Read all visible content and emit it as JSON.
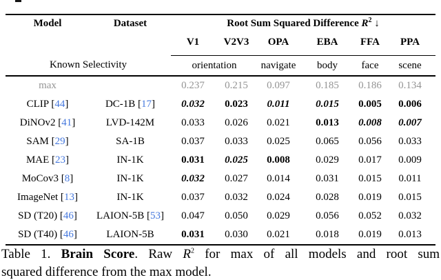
{
  "table": {
    "header": {
      "model": "Model",
      "dataset": "Dataset",
      "group_title": "Root Sum Squared Difference",
      "r_symbol": "R",
      "r_exp": "2",
      "arrow": "↓",
      "columns": [
        "V1",
        "V2V3",
        "OPA",
        "EBA",
        "FFA",
        "PPA"
      ],
      "known_selectivity": "Known Selectivity",
      "selectivity": [
        "orientation",
        "navigate",
        "body",
        "face",
        "scene"
      ]
    },
    "rows": [
      {
        "model": "max",
        "model_cite": "",
        "dataset": "",
        "dataset_cite": "",
        "muted": true,
        "values": [
          "0.237",
          "0.215",
          "0.097",
          "0.185",
          "0.186",
          "0.134"
        ],
        "styles": [
          "n",
          "n",
          "n",
          "n",
          "n",
          "n"
        ]
      },
      {
        "model": "CLIP",
        "model_cite": "44",
        "dataset": "DC-1B",
        "dataset_cite": "17",
        "muted": false,
        "values": [
          "0.032",
          "0.023",
          "0.011",
          "0.015",
          "0.005",
          "0.006"
        ],
        "styles": [
          "bi",
          "b",
          "bi",
          "bi",
          "b",
          "b"
        ]
      },
      {
        "model": "DiNOv2",
        "model_cite": "41",
        "dataset": "LVD-142M",
        "dataset_cite": "",
        "muted": false,
        "values": [
          "0.033",
          "0.026",
          "0.021",
          "0.013",
          "0.008",
          "0.007"
        ],
        "styles": [
          "n",
          "n",
          "n",
          "b",
          "bi",
          "bi"
        ]
      },
      {
        "model": "SAM",
        "model_cite": "29",
        "dataset": "SA-1B",
        "dataset_cite": "",
        "muted": false,
        "values": [
          "0.037",
          "0.033",
          "0.025",
          "0.065",
          "0.056",
          "0.033"
        ],
        "styles": [
          "n",
          "n",
          "n",
          "n",
          "n",
          "n"
        ]
      },
      {
        "model": "MAE",
        "model_cite": "23",
        "dataset": "IN-1K",
        "dataset_cite": "",
        "muted": false,
        "values": [
          "0.031",
          "0.025",
          "0.008",
          "0.029",
          "0.017",
          "0.009"
        ],
        "styles": [
          "b",
          "bi",
          "b",
          "n",
          "n",
          "n"
        ]
      },
      {
        "model": "MoCov3",
        "model_cite": "8",
        "dataset": "IN-1K",
        "dataset_cite": "",
        "muted": false,
        "values": [
          "0.032",
          "0.027",
          "0.014",
          "0.031",
          "0.015",
          "0.011"
        ],
        "styles": [
          "bi",
          "n",
          "n",
          "n",
          "n",
          "n"
        ]
      },
      {
        "model": "ImageNet",
        "model_cite": "13",
        "dataset": "IN-1K",
        "dataset_cite": "",
        "muted": false,
        "values": [
          "0.037",
          "0.032",
          "0.024",
          "0.028",
          "0.019",
          "0.015"
        ],
        "styles": [
          "n",
          "n",
          "n",
          "n",
          "n",
          "n"
        ]
      },
      {
        "model": "SD (T20)",
        "model_cite": "46",
        "dataset": "LAION-5B",
        "dataset_cite": "53",
        "muted": false,
        "values": [
          "0.047",
          "0.050",
          "0.029",
          "0.056",
          "0.052",
          "0.032"
        ],
        "styles": [
          "n",
          "n",
          "n",
          "n",
          "n",
          "n"
        ]
      },
      {
        "model": "SD (T40)",
        "model_cite": "46",
        "dataset": "LAION-5B",
        "dataset_cite": "",
        "muted": false,
        "values": [
          "0.031",
          "0.030",
          "0.021",
          "0.018",
          "0.019",
          "0.013"
        ],
        "styles": [
          "b",
          "n",
          "n",
          "n",
          "n",
          "n"
        ]
      }
    ]
  },
  "caption": {
    "label": "Table 1.",
    "title": "Brain Score",
    "after_title": ". Raw",
    "r_symbol": "R",
    "r_exp": "2",
    "rest": "for max of all models and root sum",
    "line2": "squared difference from the max model."
  },
  "colors": {
    "citation_blue": "#4477dd",
    "muted_gray": "#949494",
    "text": "#000000"
  }
}
